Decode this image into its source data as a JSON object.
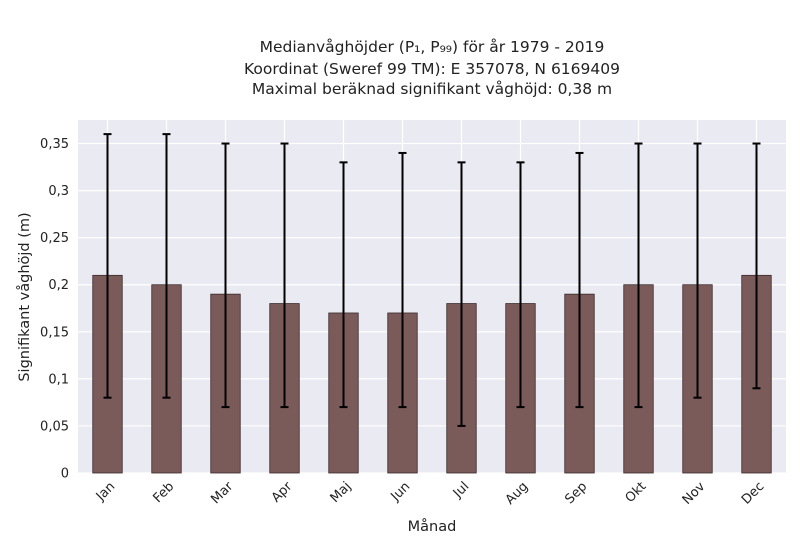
{
  "chart_data": {
    "type": "bar",
    "title_lines": [
      "Medianvåghöjder (P₁, P₉₉) för år 1979 - 2019",
      "Koordinat (Sweref 99 TM): E 357078, N 6169409",
      "Maximal beräknad signifikant våghöjd: 0,38 m"
    ],
    "xlabel": "Månad",
    "ylabel": "Signifikant våghöjd (m)",
    "ylim": [
      0,
      0.375
    ],
    "yticks": [
      0,
      0.05,
      0.1,
      0.15,
      0.2,
      0.25,
      0.3,
      0.35
    ],
    "ytick_labels": [
      "0",
      "0,05",
      "0,1",
      "0,15",
      "0,2",
      "0,25",
      "0,3",
      "0,35"
    ],
    "categories": [
      "Jan",
      "Feb",
      "Mar",
      "Apr",
      "Maj",
      "Jun",
      "Jul",
      "Aug",
      "Sep",
      "Okt",
      "Nov",
      "Dec"
    ],
    "values": [
      0.21,
      0.2,
      0.19,
      0.18,
      0.17,
      0.17,
      0.18,
      0.18,
      0.19,
      0.2,
      0.2,
      0.21
    ],
    "error_low": [
      0.08,
      0.08,
      0.07,
      0.07,
      0.07,
      0.07,
      0.05,
      0.07,
      0.07,
      0.07,
      0.08,
      0.09
    ],
    "error_high": [
      0.36,
      0.36,
      0.35,
      0.35,
      0.33,
      0.34,
      0.33,
      0.33,
      0.34,
      0.35,
      0.35,
      0.35
    ],
    "grid": true,
    "colors": {
      "bar": "#7b5a5a",
      "bar_edge": "#3a2a2a",
      "plot_bg": "#eaeaf2",
      "grid": "#ffffff",
      "error_bar": "#000000"
    }
  }
}
